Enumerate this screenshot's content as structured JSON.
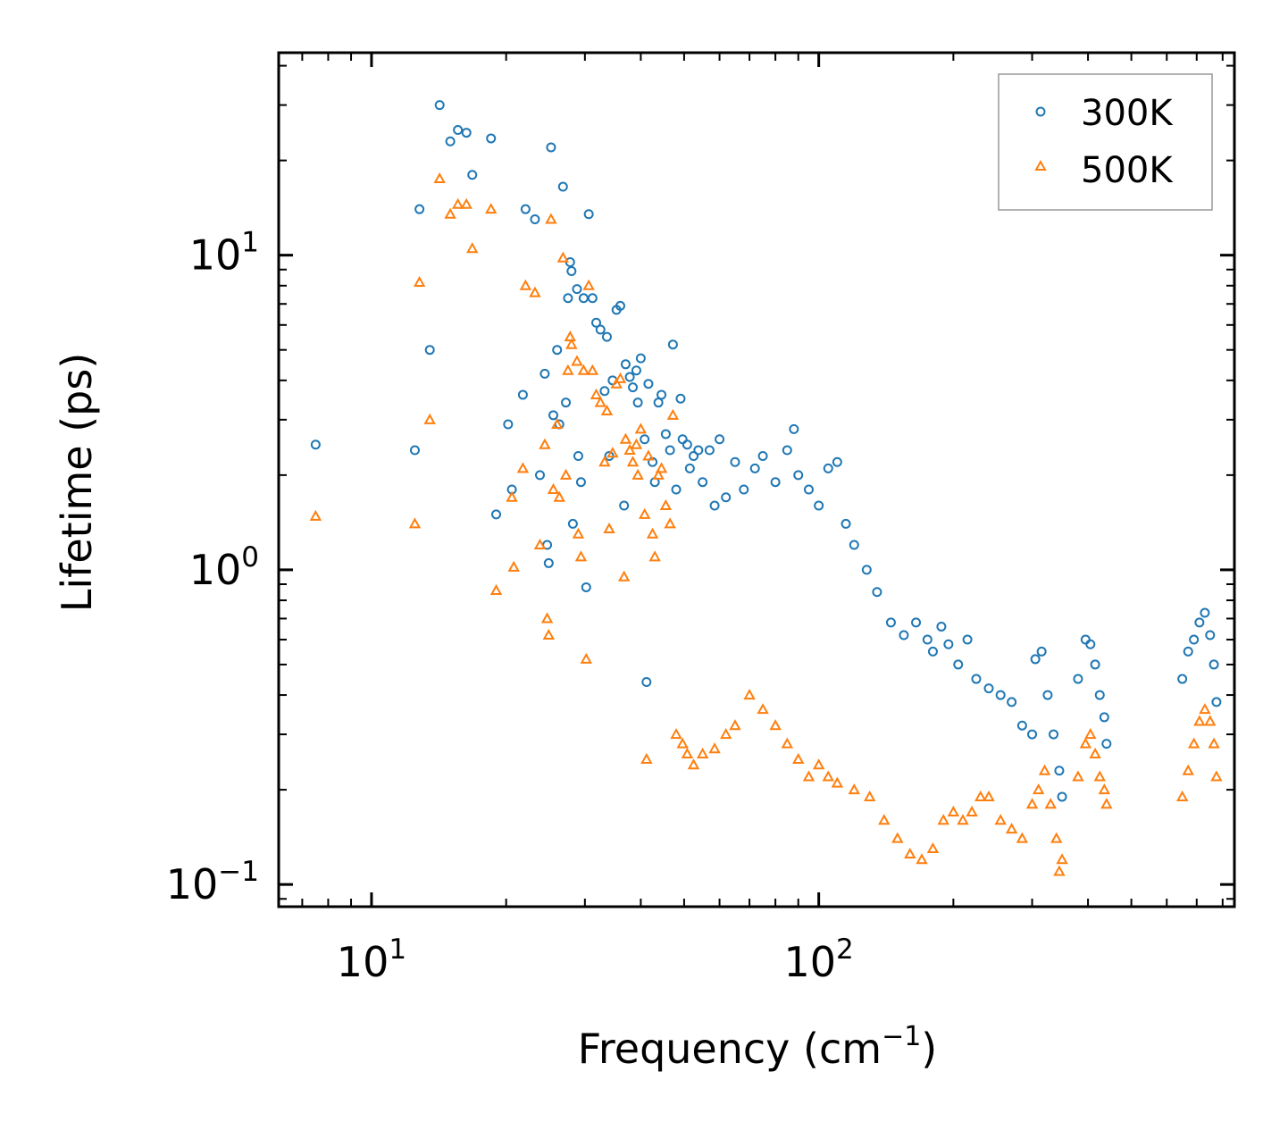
{
  "chart_data": {
    "type": "scatter",
    "xscale": "log",
    "yscale": "log",
    "xlabel": "Frequency (cm",
    "xlabel_sup": "−1",
    "xlabel_close": ")",
    "ylabel": "Lifetime (ps)",
    "xlim": [
      6.2,
      850
    ],
    "ylim": [
      0.085,
      44
    ],
    "xticks": [
      {
        "value": 10,
        "base": "10",
        "exp": "1"
      },
      {
        "value": 100,
        "base": "10",
        "exp": "2"
      }
    ],
    "yticks": [
      {
        "value": 0.1,
        "base": "10",
        "exp": "−1"
      },
      {
        "value": 1,
        "base": "10",
        "exp": "0"
      },
      {
        "value": 10,
        "base": "10",
        "exp": "1"
      }
    ],
    "legend_position": "top-right",
    "series": [
      {
        "name": "300K",
        "marker": "circle",
        "color": "#1f77b4",
        "points": [
          [
            7.5,
            2.5
          ],
          [
            12.5,
            2.4
          ],
          [
            12.8,
            14
          ],
          [
            13.5,
            5.0
          ],
          [
            14.2,
            30
          ],
          [
            15,
            23
          ],
          [
            15.6,
            25
          ],
          [
            16.3,
            24.5
          ],
          [
            16.8,
            18
          ],
          [
            18.5,
            23.5
          ],
          [
            19,
            1.5
          ],
          [
            20.2,
            2.9
          ],
          [
            20.6,
            1.8
          ],
          [
            21.8,
            3.6
          ],
          [
            22.1,
            14
          ],
          [
            23.2,
            13
          ],
          [
            23.8,
            2.0
          ],
          [
            24.4,
            4.2
          ],
          [
            24.7,
            1.2
          ],
          [
            24.9,
            1.05
          ],
          [
            25.2,
            22
          ],
          [
            25.5,
            3.1
          ],
          [
            26,
            5.0
          ],
          [
            26.3,
            2.9
          ],
          [
            26.8,
            16.5
          ],
          [
            27.2,
            3.4
          ],
          [
            27.5,
            7.3
          ],
          [
            27.8,
            9.5
          ],
          [
            28,
            8.9
          ],
          [
            28.2,
            1.4
          ],
          [
            28.8,
            7.8
          ],
          [
            29,
            2.3
          ],
          [
            29.4,
            1.9
          ],
          [
            29.8,
            7.3
          ],
          [
            30.2,
            0.88
          ],
          [
            30.6,
            13.5
          ],
          [
            31.2,
            7.3
          ],
          [
            31.8,
            6.1
          ],
          [
            32.5,
            5.8
          ],
          [
            33.2,
            3.7
          ],
          [
            33.6,
            5.5
          ],
          [
            34,
            2.3
          ],
          [
            34.6,
            4.0
          ],
          [
            35.3,
            6.7
          ],
          [
            36,
            6.9
          ],
          [
            36.7,
            1.6
          ],
          [
            37,
            4.5
          ],
          [
            37.8,
            4.1
          ],
          [
            38.4,
            3.8
          ],
          [
            39.1,
            4.3
          ],
          [
            39.4,
            3.4
          ],
          [
            40,
            4.7
          ],
          [
            40.8,
            2.6
          ],
          [
            41.2,
            0.44
          ],
          [
            41.6,
            3.9
          ],
          [
            42.5,
            2.2
          ],
          [
            43,
            1.9
          ],
          [
            43.8,
            3.4
          ],
          [
            44.5,
            3.6
          ],
          [
            45.5,
            2.7
          ],
          [
            46.5,
            2.4
          ],
          [
            47.2,
            5.2
          ],
          [
            48,
            1.8
          ],
          [
            49.1,
            3.5
          ],
          [
            49.6,
            2.6
          ],
          [
            50.8,
            2.5
          ],
          [
            51.5,
            2.1
          ],
          [
            52.5,
            2.3
          ],
          [
            53.8,
            2.4
          ],
          [
            55,
            1.9
          ],
          [
            57,
            2.4
          ],
          [
            58.5,
            1.6
          ],
          [
            60,
            2.6
          ],
          [
            62,
            1.7
          ],
          [
            65,
            2.2
          ],
          [
            68,
            1.8
          ],
          [
            72,
            2.1
          ],
          [
            75,
            2.3
          ],
          [
            80,
            1.9
          ],
          [
            85,
            2.4
          ],
          [
            88,
            2.8
          ],
          [
            90,
            2.0
          ],
          [
            95,
            1.8
          ],
          [
            100,
            1.6
          ],
          [
            105,
            2.1
          ],
          [
            110,
            2.2
          ],
          [
            115,
            1.4
          ],
          [
            120,
            1.2
          ],
          [
            128,
            1.0
          ],
          [
            135,
            0.85
          ],
          [
            145,
            0.68
          ],
          [
            155,
            0.62
          ],
          [
            165,
            0.68
          ],
          [
            175,
            0.6
          ],
          [
            180,
            0.55
          ],
          [
            188,
            0.66
          ],
          [
            195,
            0.58
          ],
          [
            205,
            0.5
          ],
          [
            215,
            0.6
          ],
          [
            225,
            0.45
          ],
          [
            240,
            0.42
          ],
          [
            255,
            0.4
          ],
          [
            270,
            0.38
          ],
          [
            285,
            0.32
          ],
          [
            300,
            0.3
          ],
          [
            305,
            0.52
          ],
          [
            315,
            0.55
          ],
          [
            325,
            0.4
          ],
          [
            335,
            0.3
          ],
          [
            345,
            0.23
          ],
          [
            350,
            0.19
          ],
          [
            380,
            0.45
          ],
          [
            395,
            0.6
          ],
          [
            405,
            0.58
          ],
          [
            415,
            0.5
          ],
          [
            425,
            0.4
          ],
          [
            435,
            0.34
          ],
          [
            440,
            0.28
          ],
          [
            650,
            0.45
          ],
          [
            670,
            0.55
          ],
          [
            690,
            0.6
          ],
          [
            710,
            0.68
          ],
          [
            730,
            0.73
          ],
          [
            750,
            0.62
          ],
          [
            765,
            0.5
          ],
          [
            775,
            0.38
          ]
        ]
      },
      {
        "name": "500K",
        "marker": "triangle",
        "color": "#ff7f0e",
        "points": [
          [
            7.5,
            1.48
          ],
          [
            12.5,
            1.4
          ],
          [
            12.8,
            8.2
          ],
          [
            13.5,
            3.0
          ],
          [
            14.2,
            17.5
          ],
          [
            15,
            13.5
          ],
          [
            15.6,
            14.5
          ],
          [
            16.3,
            14.5
          ],
          [
            16.8,
            10.5
          ],
          [
            18.5,
            14
          ],
          [
            19,
            0.86
          ],
          [
            20.6,
            1.7
          ],
          [
            20.8,
            1.02
          ],
          [
            21.8,
            2.1
          ],
          [
            22.1,
            8.0
          ],
          [
            23.2,
            7.6
          ],
          [
            23.8,
            1.2
          ],
          [
            24.4,
            2.5
          ],
          [
            24.7,
            0.7
          ],
          [
            24.9,
            0.62
          ],
          [
            25.2,
            13
          ],
          [
            25.5,
            1.8
          ],
          [
            26,
            2.9
          ],
          [
            26.3,
            1.7
          ],
          [
            26.8,
            9.8
          ],
          [
            27.2,
            2.0
          ],
          [
            27.5,
            4.3
          ],
          [
            27.8,
            5.5
          ],
          [
            28,
            5.2
          ],
          [
            28.8,
            4.6
          ],
          [
            29,
            1.3
          ],
          [
            29.4,
            1.1
          ],
          [
            29.8,
            4.3
          ],
          [
            30.2,
            0.52
          ],
          [
            30.6,
            8.0
          ],
          [
            31.2,
            4.3
          ],
          [
            31.8,
            3.6
          ],
          [
            32.5,
            3.4
          ],
          [
            33.2,
            2.2
          ],
          [
            33.6,
            3.2
          ],
          [
            34,
            1.35
          ],
          [
            34.6,
            2.35
          ],
          [
            35.3,
            3.9
          ],
          [
            36,
            4.05
          ],
          [
            36.7,
            0.95
          ],
          [
            37,
            2.6
          ],
          [
            37.8,
            2.4
          ],
          [
            38.4,
            2.2
          ],
          [
            39.1,
            2.5
          ],
          [
            39.4,
            2.0
          ],
          [
            40,
            2.8
          ],
          [
            40.8,
            1.5
          ],
          [
            41.2,
            0.25
          ],
          [
            41.6,
            2.3
          ],
          [
            42.5,
            1.3
          ],
          [
            43,
            1.1
          ],
          [
            43.8,
            2.0
          ],
          [
            44.5,
            2.1
          ],
          [
            45.5,
            1.6
          ],
          [
            46.5,
            1.4
          ],
          [
            47.2,
            3.1
          ],
          [
            48,
            0.3
          ],
          [
            49.6,
            0.28
          ],
          [
            50.8,
            0.26
          ],
          [
            52.5,
            0.24
          ],
          [
            55,
            0.26
          ],
          [
            58.5,
            0.27
          ],
          [
            62,
            0.3
          ],
          [
            65,
            0.32
          ],
          [
            70,
            0.4
          ],
          [
            75,
            0.36
          ],
          [
            80,
            0.32
          ],
          [
            85,
            0.28
          ],
          [
            90,
            0.25
          ],
          [
            95,
            0.22
          ],
          [
            100,
            0.24
          ],
          [
            105,
            0.22
          ],
          [
            110,
            0.21
          ],
          [
            120,
            0.2
          ],
          [
            130,
            0.19
          ],
          [
            140,
            0.16
          ],
          [
            150,
            0.14
          ],
          [
            160,
            0.125
          ],
          [
            170,
            0.12
          ],
          [
            180,
            0.13
          ],
          [
            190,
            0.16
          ],
          [
            200,
            0.17
          ],
          [
            210,
            0.16
          ],
          [
            220,
            0.17
          ],
          [
            230,
            0.19
          ],
          [
            240,
            0.19
          ],
          [
            255,
            0.16
          ],
          [
            270,
            0.15
          ],
          [
            285,
            0.14
          ],
          [
            300,
            0.18
          ],
          [
            310,
            0.2
          ],
          [
            320,
            0.23
          ],
          [
            330,
            0.18
          ],
          [
            340,
            0.14
          ],
          [
            345,
            0.11
          ],
          [
            350,
            0.12
          ],
          [
            380,
            0.22
          ],
          [
            395,
            0.28
          ],
          [
            405,
            0.3
          ],
          [
            415,
            0.26
          ],
          [
            425,
            0.22
          ],
          [
            435,
            0.2
          ],
          [
            440,
            0.18
          ],
          [
            650,
            0.19
          ],
          [
            670,
            0.23
          ],
          [
            690,
            0.28
          ],
          [
            710,
            0.33
          ],
          [
            730,
            0.36
          ],
          [
            750,
            0.33
          ],
          [
            765,
            0.28
          ],
          [
            775,
            0.22
          ]
        ]
      }
    ]
  }
}
